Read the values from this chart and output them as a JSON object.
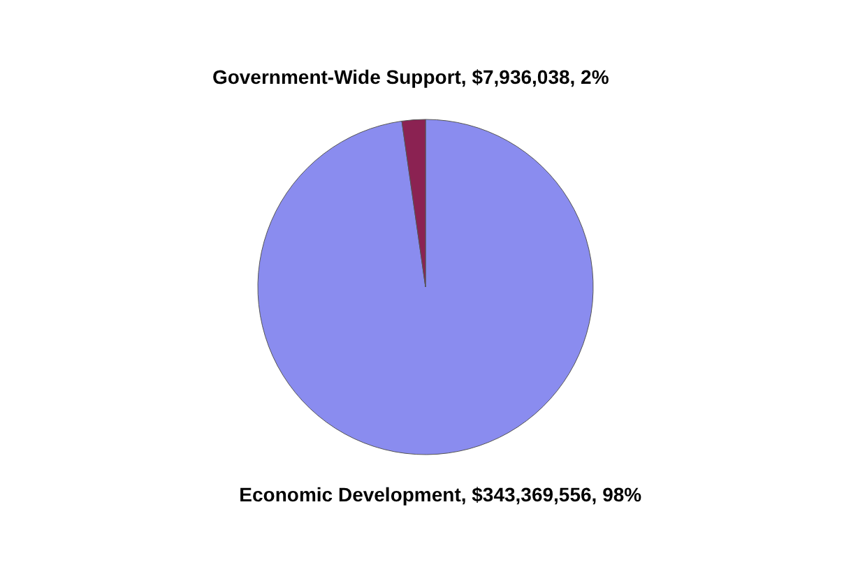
{
  "chart_data": {
    "type": "pie",
    "categories": [
      "Economic Development",
      "Government-Wide Support"
    ],
    "values": [
      343369556,
      7936038
    ],
    "value_labels": [
      "$343,369,556, 98%",
      "$7,936,038, 2%"
    ],
    "colors": [
      "#8a8cef",
      "#8b2252"
    ]
  }
}
